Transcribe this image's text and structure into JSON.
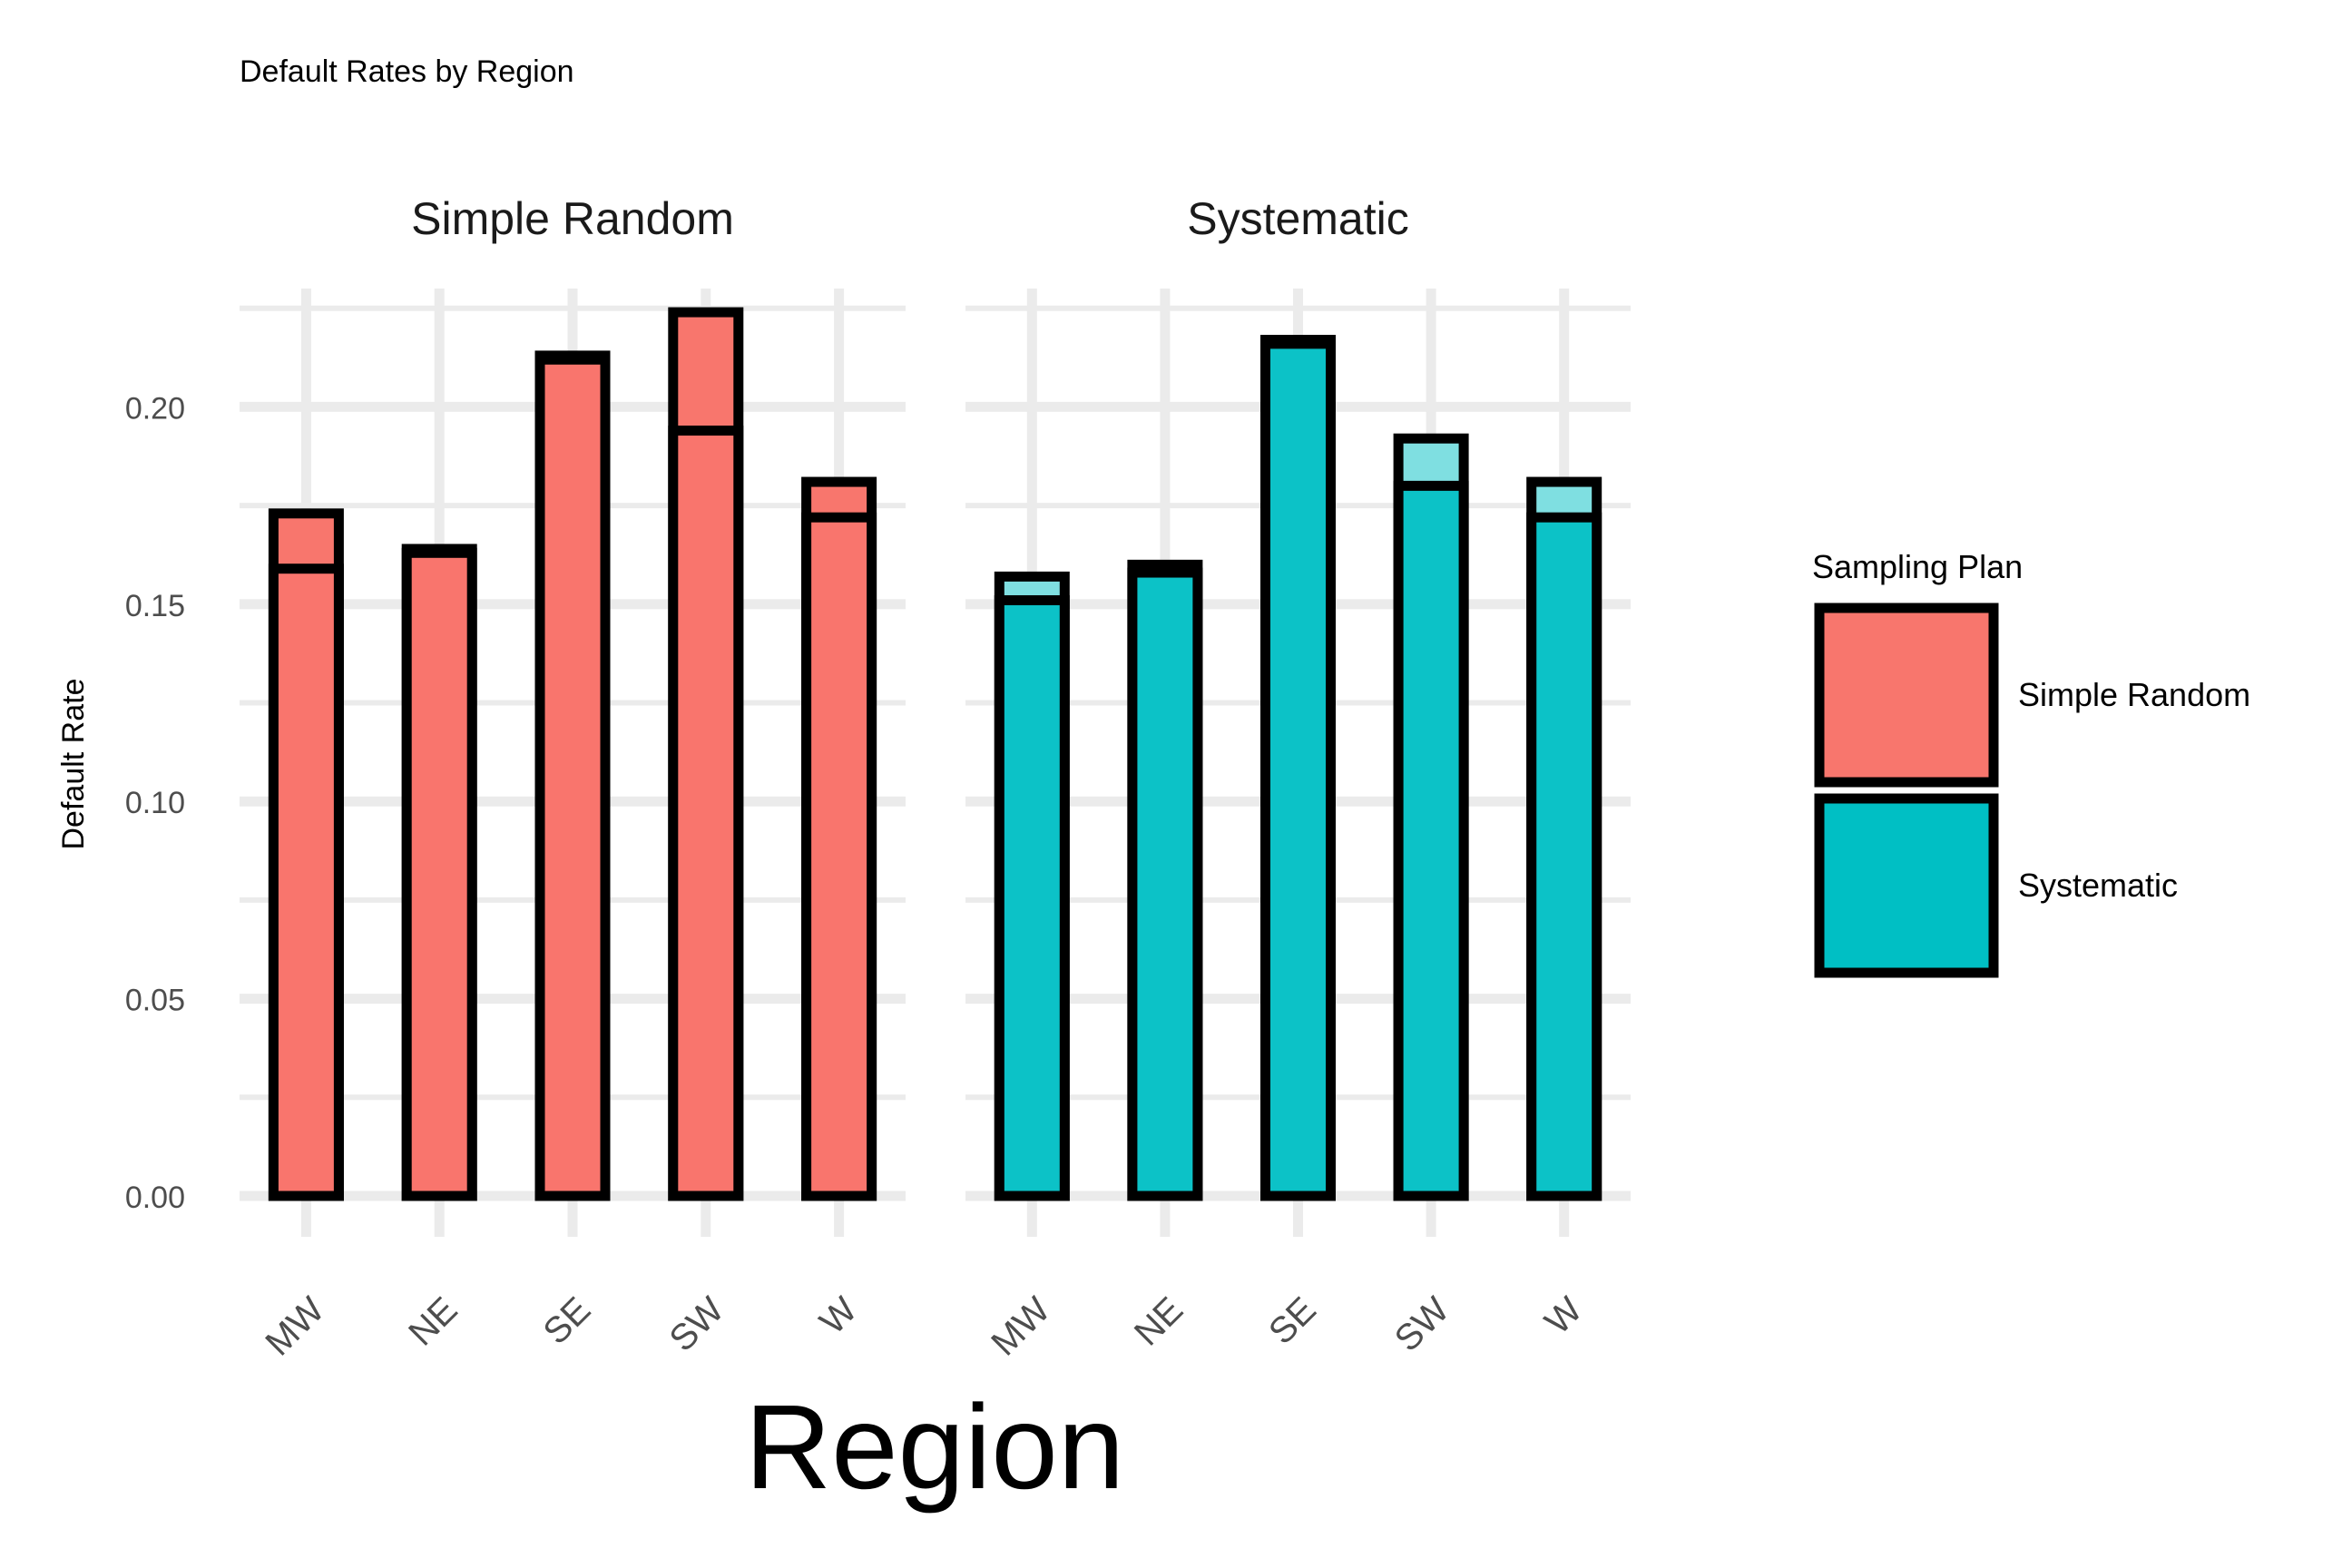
{
  "chart_data": {
    "type": "bar",
    "title": "Default Rates by Region",
    "xlabel": "Region",
    "ylabel": "Default Rate",
    "ylim": [
      0,
      0.23
    ],
    "y_ticks": [
      0.0,
      0.05,
      0.1,
      0.15,
      0.2
    ],
    "y_tick_labels": [
      "0.00",
      "0.05",
      "0.10",
      "0.15",
      "0.20"
    ],
    "categories": [
      "MW",
      "NE",
      "SE",
      "SW",
      "W"
    ],
    "grid": true,
    "legend": {
      "title": "Sampling Plan",
      "placement": "right",
      "entries": [
        "Simple Random",
        "Systematic"
      ]
    },
    "panels": [
      {
        "name": "Simple Random",
        "color": "#F8766D",
        "light_color": "#F8766D",
        "samples": [
          [
            0.159,
            0.164,
            0.212,
            0.194,
            0.172
          ],
          [
            0.173,
            0.163,
            0.213,
            0.224,
            0.181
          ]
        ]
      },
      {
        "name": "Systematic",
        "color": "#00BFC4",
        "light_color": "#7FDFE1",
        "samples": [
          [
            0.151,
            0.158,
            0.216,
            0.18,
            0.172
          ],
          [
            0.157,
            0.16,
            0.217,
            0.192,
            0.181
          ]
        ]
      }
    ]
  }
}
